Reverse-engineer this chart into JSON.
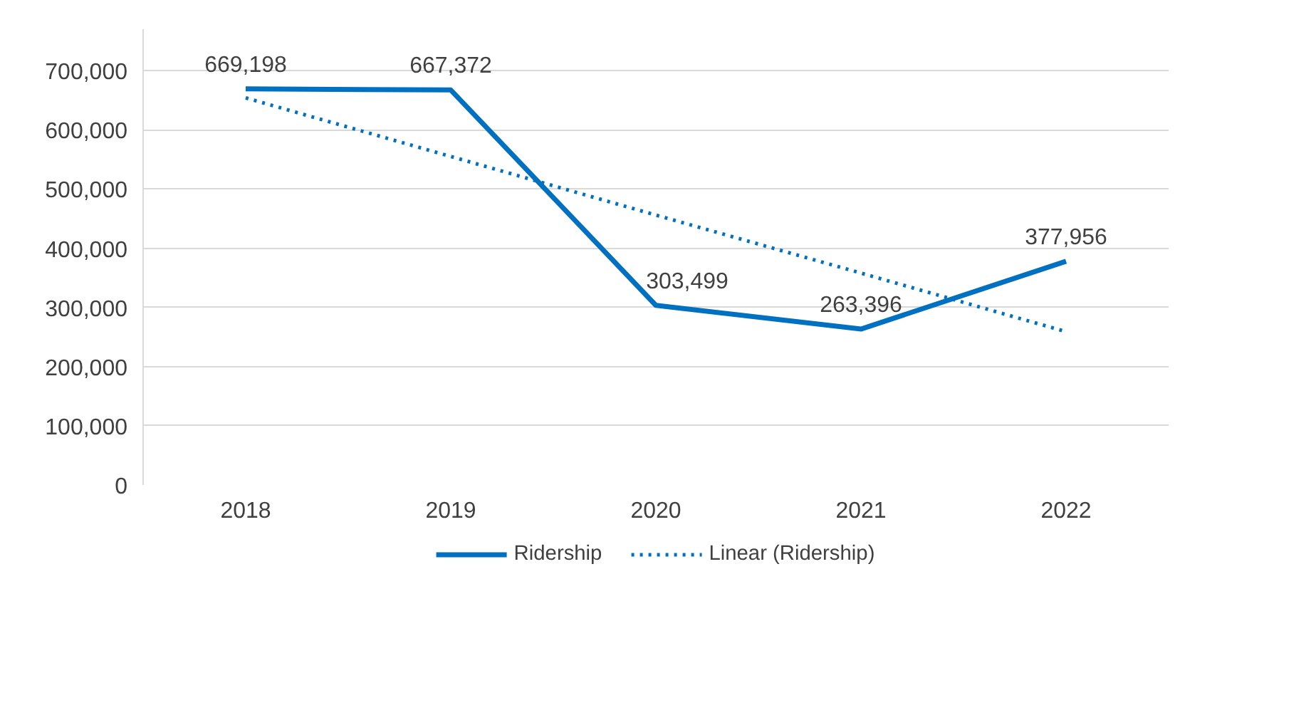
{
  "chart_data": {
    "type": "line",
    "categories": [
      "2018",
      "2019",
      "2020",
      "2021",
      "2022"
    ],
    "series": [
      {
        "name": "Ridership",
        "color": "#0070c0",
        "values": [
          669198,
          667372,
          303499,
          263396,
          377956
        ],
        "value_labels": [
          "669,198",
          "667,372",
          "303,499",
          "263,396",
          "377,956"
        ],
        "line_style": "solid"
      },
      {
        "name": "Linear (Ridership)",
        "color": "#0070c0",
        "type": "line",
        "values": [
          654000,
          555000,
          456000,
          358000,
          259000
        ],
        "line_style": "dotted"
      }
    ],
    "ylim": [
      0,
      770000
    ],
    "yticks": [
      0,
      {
        "value": 100000,
        "label": "100,000"
      },
      {
        "value": 200000,
        "label": "200,000"
      },
      {
        "value": 300000,
        "label": "300,000"
      },
      {
        "value": 400000,
        "label": "400,000"
      },
      {
        "value": 500000,
        "label": "500,000"
      },
      {
        "value": 600000,
        "label": "600,000"
      },
      {
        "value": 700000,
        "label": "700,000"
      }
    ],
    "grid": "y",
    "legend": "bottom",
    "marker": "none"
  }
}
